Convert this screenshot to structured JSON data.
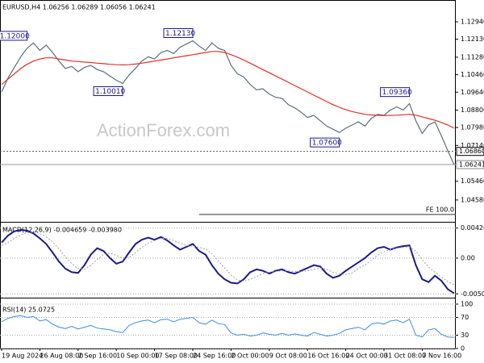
{
  "chart_data": [
    {
      "type": "line",
      "title": "EURUSD,H4  1.06256 1.06289 1.06056 1.06241",
      "watermark": "ActionForex.com",
      "categories": [
        "19 Aug 2024",
        null,
        null,
        null,
        null,
        null,
        "26 Aug 08:00",
        null,
        null,
        null,
        null,
        null,
        "2 Sep 16:00",
        null,
        null,
        null,
        null,
        null,
        "10 Sep 00:00",
        null,
        null,
        null,
        null,
        null,
        "17 Sep 08:00",
        null,
        null,
        null,
        null,
        null,
        "24 Sep 16:00",
        null,
        null,
        null,
        null,
        null,
        "2 Oct 00:00",
        null,
        null,
        null,
        null,
        null,
        "9 Oct 08:00",
        null,
        null,
        null,
        null,
        null,
        "16 Oct 16:00",
        null,
        null,
        null,
        null,
        null,
        "24 Oct 00:00",
        null,
        null,
        null,
        null,
        null,
        "31 Oct 08:00",
        null,
        null,
        null,
        null,
        null,
        "7 Nov 16:00",
        null,
        null,
        null,
        null,
        null
      ],
      "series": [
        {
          "name": "EURUSD",
          "color": "#56707e",
          "width": 1.2,
          "values": [
            1.0965,
            1.103,
            1.108,
            1.113,
            1.117,
            1.1195,
            1.116,
            1.1185,
            1.115,
            1.111,
            1.1075,
            1.1085,
            1.106,
            1.108,
            1.109,
            1.107,
            1.106,
            1.104,
            1.102,
            1.1005,
            1.1045,
            1.1075,
            1.111,
            1.113,
            1.112,
            1.115,
            1.116,
            1.1145,
            1.1175,
            1.119,
            1.1205,
            1.118,
            1.116,
            1.1195,
            1.117,
            1.116,
            1.109,
            1.105,
            1.1035,
            1.1,
            1.0975,
            1.098,
            1.0955,
            1.094,
            1.0935,
            1.0905,
            1.089,
            1.087,
            1.0845,
            1.0855,
            1.083,
            1.0805,
            1.079,
            1.0775,
            1.0795,
            1.081,
            1.0825,
            1.0805,
            1.084,
            1.086,
            1.0855,
            1.088,
            1.0895,
            1.088,
            1.091,
            1.083,
            1.077,
            1.081,
            1.0825,
            1.076,
            1.069,
            1.0624
          ]
        },
        {
          "name": "MA",
          "color": "#e0302a",
          "width": 1.2,
          "values": [
            1.1,
            1.1025,
            1.105,
            1.1075,
            1.1095,
            1.111,
            1.112,
            1.1125,
            1.1125,
            1.112,
            1.1115,
            1.111,
            1.1108,
            1.1105,
            1.1103,
            1.11,
            1.1098,
            1.1095,
            1.1093,
            1.1092,
            1.1093,
            1.1096,
            1.11,
            1.1105,
            1.111,
            1.1115,
            1.112,
            1.1125,
            1.113,
            1.1135,
            1.114,
            1.1145,
            1.115,
            1.1155,
            1.1155,
            1.115,
            1.114,
            1.1128,
            1.1115,
            1.11,
            1.1085,
            1.107,
            1.1055,
            1.104,
            1.1025,
            1.101,
            1.0995,
            1.098,
            1.0965,
            1.095,
            1.0935,
            1.092,
            1.0905,
            1.0893,
            1.0882,
            1.0873,
            1.0866,
            1.086,
            1.0857,
            1.0855,
            1.0854,
            1.0855,
            1.0856,
            1.0858,
            1.086,
            1.0856,
            1.0848,
            1.084,
            1.0832,
            1.0822,
            1.081,
            1.0795
          ]
        }
      ],
      "ylim": [
        1.0363,
        1.1389
      ],
      "yticks": [
        {
          "value": 1.1294,
          "label": "1.12940"
        },
        {
          "value": 1.1213,
          "label": "1.12130"
        },
        {
          "value": 1.1128,
          "label": "1.11280"
        },
        {
          "value": 1.1046,
          "label": "1.10460"
        },
        {
          "value": 1.0964,
          "label": "1.09640"
        },
        {
          "value": 1.088,
          "label": "1.08800"
        },
        {
          "value": 1.0798,
          "label": "1.07980"
        },
        {
          "value": 1.0714,
          "label": "1.07140"
        },
        {
          "value": 1.0546,
          "label": "1.05460"
        },
        {
          "value": 1.0458,
          "label": "1.04580"
        }
      ],
      "grid": false,
      "price_lines": [
        {
          "value": 1.0686,
          "label": "1.06860",
          "style": "dotted"
        },
        {
          "value": 1.06241,
          "label": "1.06241",
          "style": "solid"
        }
      ],
      "fe_level": {
        "value": 1.039,
        "label": "FE 100.0",
        "start_index": 31
      },
      "annotations": [
        {
          "label": "1.12000",
          "value": 1.12,
          "index": 4
        },
        {
          "label": "1.12130",
          "value": 1.1213,
          "index": 30
        },
        {
          "label": "1.10010",
          "value": 1.1001,
          "index": 19
        },
        {
          "label": "1.07600",
          "value": 1.076,
          "index": 53
        },
        {
          "label": "1.09360",
          "value": 1.0936,
          "index": 64
        }
      ]
    },
    {
      "type": "line",
      "title": "MACD(12,26,9) -0.004659 -0.003980",
      "series": [
        {
          "name": "MACD",
          "color": "#1a1a8c",
          "width": 2,
          "values": [
            0.0022,
            0.0032,
            0.0038,
            0.004,
            0.0039,
            0.0035,
            0.0028,
            0.002,
            0.0008,
            -0.0005,
            -0.0015,
            -0.002,
            -0.0021,
            -0.001,
            0.0005,
            0.0014,
            0.001,
            0.0,
            -0.0008,
            -0.0005,
            0.0008,
            0.002,
            0.0026,
            0.0029,
            0.0026,
            0.003,
            0.0025,
            0.0018,
            0.0012,
            0.0016,
            0.002,
            0.001,
            0.0005,
            -0.001,
            -0.0022,
            -0.003,
            -0.0035,
            -0.0036,
            -0.003,
            -0.002,
            -0.0016,
            -0.0018,
            -0.0022,
            -0.0018,
            -0.0016,
            -0.002,
            -0.0022,
            -0.0018,
            -0.0014,
            -0.001,
            -0.0012,
            -0.0022,
            -0.0028,
            -0.0025,
            -0.0018,
            -0.0012,
            -0.0006,
            0.0,
            0.0008,
            0.0014,
            0.0016,
            0.0012,
            0.0015,
            0.0017,
            0.0018,
            -0.001,
            -0.003,
            -0.0034,
            -0.0025,
            -0.0032,
            -0.0044,
            -0.005
          ]
        },
        {
          "name": "Signal",
          "color": "#a0a0a0",
          "width": 1,
          "values": [
            0.0018,
            0.0022,
            0.0028,
            0.0033,
            0.0036,
            0.0037,
            0.0035,
            0.003,
            0.0023,
            0.0013,
            0.0002,
            -0.0008,
            -0.0015,
            -0.0016,
            -0.001,
            -0.0002,
            0.0005,
            0.0007,
            0.0004,
            0.0,
            0.0001,
            0.0008,
            0.0015,
            0.0021,
            0.0025,
            0.0028,
            0.0028,
            0.0025,
            0.0021,
            0.0018,
            0.0017,
            0.0015,
            0.0013,
            0.0006,
            -0.0004,
            -0.0014,
            -0.0024,
            -0.0031,
            -0.0033,
            -0.003,
            -0.0026,
            -0.0022,
            -0.002,
            -0.0019,
            -0.0018,
            -0.0018,
            -0.0019,
            -0.0019,
            -0.0018,
            -0.0016,
            -0.0014,
            -0.0016,
            -0.002,
            -0.0023,
            -0.0023,
            -0.0021,
            -0.0015,
            -0.001,
            -0.0003,
            0.0004,
            0.0009,
            0.0012,
            0.0014,
            0.0015,
            0.0016,
            0.001,
            -0.0002,
            -0.0013,
            -0.002,
            -0.0027,
            -0.0033,
            -0.0038
          ]
        }
      ],
      "ylim": [
        -0.0055,
        0.0048
      ],
      "yticks": [
        0.004263,
        {
          "value": 0,
          "label": "0.00"
        },
        -0.005084
      ],
      "grid": true
    },
    {
      "type": "line",
      "title": "RSI(14) 25.0725",
      "series": [
        {
          "name": "RSI",
          "color": "#3a8ee6",
          "width": 1,
          "values": [
            60,
            68,
            72,
            74,
            70,
            72,
            62,
            65,
            55,
            48,
            45,
            50,
            44,
            48,
            52,
            46,
            44,
            42,
            38,
            36,
            52,
            58,
            62,
            64,
            58,
            65,
            66,
            60,
            66,
            68,
            70,
            58,
            55,
            64,
            56,
            54,
            35,
            30,
            32,
            28,
            30,
            35,
            32,
            30,
            34,
            30,
            33,
            30,
            28,
            36,
            32,
            28,
            30,
            34,
            42,
            45,
            48,
            42,
            55,
            58,
            55,
            62,
            64,
            58,
            66,
            30,
            26,
            42,
            45,
            32,
            26,
            25
          ]
        }
      ],
      "ylim": [
        0,
        100
      ],
      "yticks": [
        100,
        70,
        30,
        0
      ],
      "grid": true
    }
  ]
}
